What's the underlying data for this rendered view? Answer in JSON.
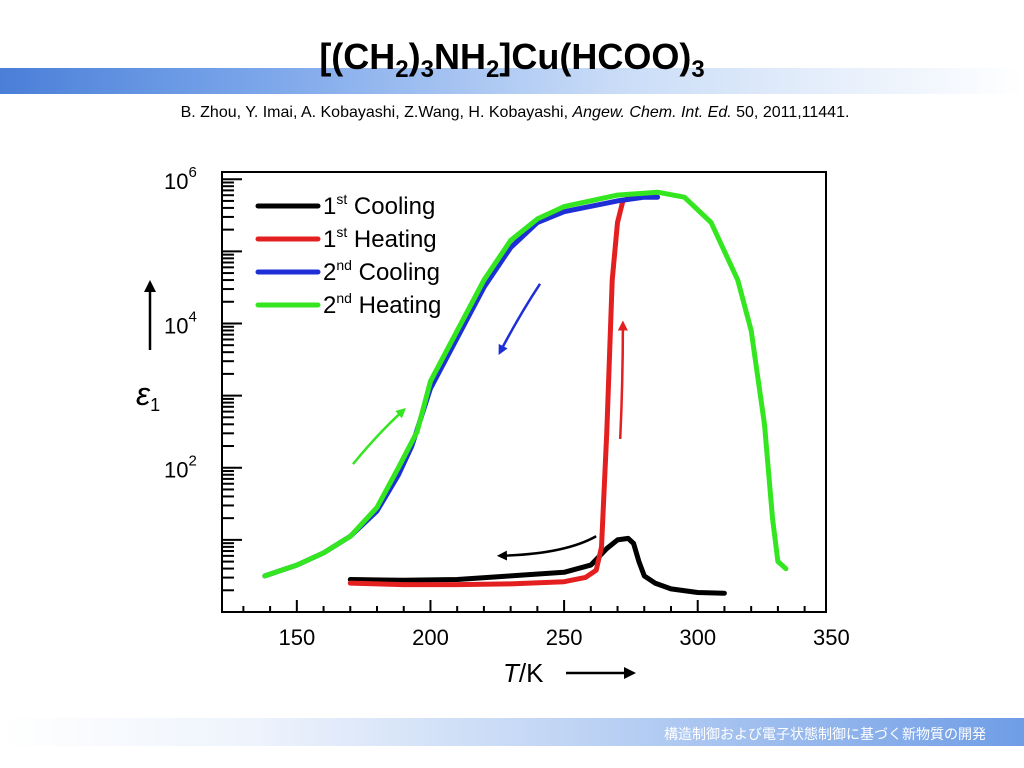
{
  "slide": {
    "title": {
      "parts": [
        {
          "text": "[(CH",
          "sub": false
        },
        {
          "text": "2",
          "sub": true
        },
        {
          "text": ")",
          "sub": false
        },
        {
          "text": "3",
          "sub": true
        },
        {
          "text": "NH",
          "sub": false
        },
        {
          "text": "2",
          "sub": true
        },
        {
          "text": "]Cu(HCOO)",
          "sub": false
        },
        {
          "text": "3",
          "sub": true
        }
      ]
    },
    "reference": {
      "authors": "B. Zhou, Y. Imai, A. Kobayashi, Z.Wang, H. Kobayashi, ",
      "journal": "Angew. Chem. Int. Ed.",
      "details": " 50, 2011,11441."
    },
    "footer": "構造制御および電子状態制御に基づく新物質の開発"
  },
  "colors": {
    "title_band": "#4a7fd8",
    "cooling1": "#000000",
    "heating1": "#e41f1f",
    "cooling2": "#1f2fd6",
    "heating2": "#33e61f"
  },
  "chart_data": {
    "type": "line",
    "xlabel": {
      "symbol": "T",
      "unit": "/K"
    },
    "ylabel": {
      "symbol": "ε",
      "sub": "1"
    },
    "xlim": [
      122,
      348
    ],
    "ylim_log10": [
      0.0,
      6.1
    ],
    "x_ticks": [
      "150",
      "200",
      "250",
      "300",
      "350"
    ],
    "x_tick_values": [
      150,
      200,
      250,
      300,
      350
    ],
    "y_ticks": [
      {
        "base": "10",
        "exp": "2",
        "log10": 2
      },
      {
        "base": "10",
        "exp": "4",
        "log10": 4
      },
      {
        "base": "10",
        "exp": "6",
        "log10": 6
      }
    ],
    "y_scale": "log",
    "grid": false,
    "legend_position": "top-left",
    "series": [
      {
        "name_main": "1",
        "name_sup": "st",
        "name_tail": " Cooling",
        "color": "#000000",
        "points": [
          [
            170,
            0.45
          ],
          [
            190,
            0.44
          ],
          [
            210,
            0.45
          ],
          [
            230,
            0.5
          ],
          [
            250,
            0.55
          ],
          [
            260,
            0.65
          ],
          [
            266,
            0.88
          ],
          [
            270,
            1.0
          ],
          [
            274,
            1.02
          ],
          [
            276,
            0.95
          ],
          [
            278,
            0.7
          ],
          [
            280,
            0.5
          ],
          [
            284,
            0.4
          ],
          [
            290,
            0.32
          ],
          [
            300,
            0.27
          ],
          [
            310,
            0.26
          ]
        ]
      },
      {
        "name_main": "1",
        "name_sup": "st",
        "name_tail": " Heating",
        "color": "#e41f1f",
        "points": [
          [
            170,
            0.4
          ],
          [
            190,
            0.38
          ],
          [
            210,
            0.38
          ],
          [
            230,
            0.39
          ],
          [
            250,
            0.42
          ],
          [
            258,
            0.48
          ],
          [
            262,
            0.58
          ],
          [
            264,
            0.9
          ],
          [
            266,
            2.5
          ],
          [
            268,
            4.6
          ],
          [
            270,
            5.4
          ],
          [
            272,
            5.7
          ],
          [
            275,
            5.75
          ]
        ]
      },
      {
        "name_main": "2",
        "name_sup": "nd",
        "name_tail": " Cooling",
        "color": "#1f2fd6",
        "points": [
          [
            285,
            5.75
          ],
          [
            280,
            5.75
          ],
          [
            270,
            5.7
          ],
          [
            250,
            5.55
          ],
          [
            240,
            5.4
          ],
          [
            230,
            5.05
          ],
          [
            220,
            4.5
          ],
          [
            210,
            3.8
          ],
          [
            200,
            3.1
          ],
          [
            193,
            2.3
          ],
          [
            188,
            1.9
          ],
          [
            180,
            1.4
          ],
          [
            170,
            1.05
          ],
          [
            160,
            0.82
          ],
          [
            150,
            0.65
          ],
          [
            138,
            0.5
          ]
        ]
      },
      {
        "name_main": "2",
        "name_sup": "nd",
        "name_tail": " Heating",
        "color": "#33e61f",
        "points": [
          [
            138,
            0.5
          ],
          [
            150,
            0.65
          ],
          [
            160,
            0.82
          ],
          [
            170,
            1.05
          ],
          [
            180,
            1.45
          ],
          [
            188,
            2.0
          ],
          [
            195,
            2.5
          ],
          [
            200,
            3.2
          ],
          [
            210,
            3.9
          ],
          [
            220,
            4.6
          ],
          [
            230,
            5.15
          ],
          [
            240,
            5.45
          ],
          [
            250,
            5.62
          ],
          [
            270,
            5.78
          ],
          [
            285,
            5.82
          ],
          [
            295,
            5.75
          ],
          [
            305,
            5.4
          ],
          [
            315,
            4.6
          ],
          [
            320,
            3.9
          ],
          [
            325,
            2.6
          ],
          [
            328,
            1.3
          ],
          [
            330,
            0.7
          ],
          [
            333,
            0.6
          ]
        ]
      }
    ]
  }
}
